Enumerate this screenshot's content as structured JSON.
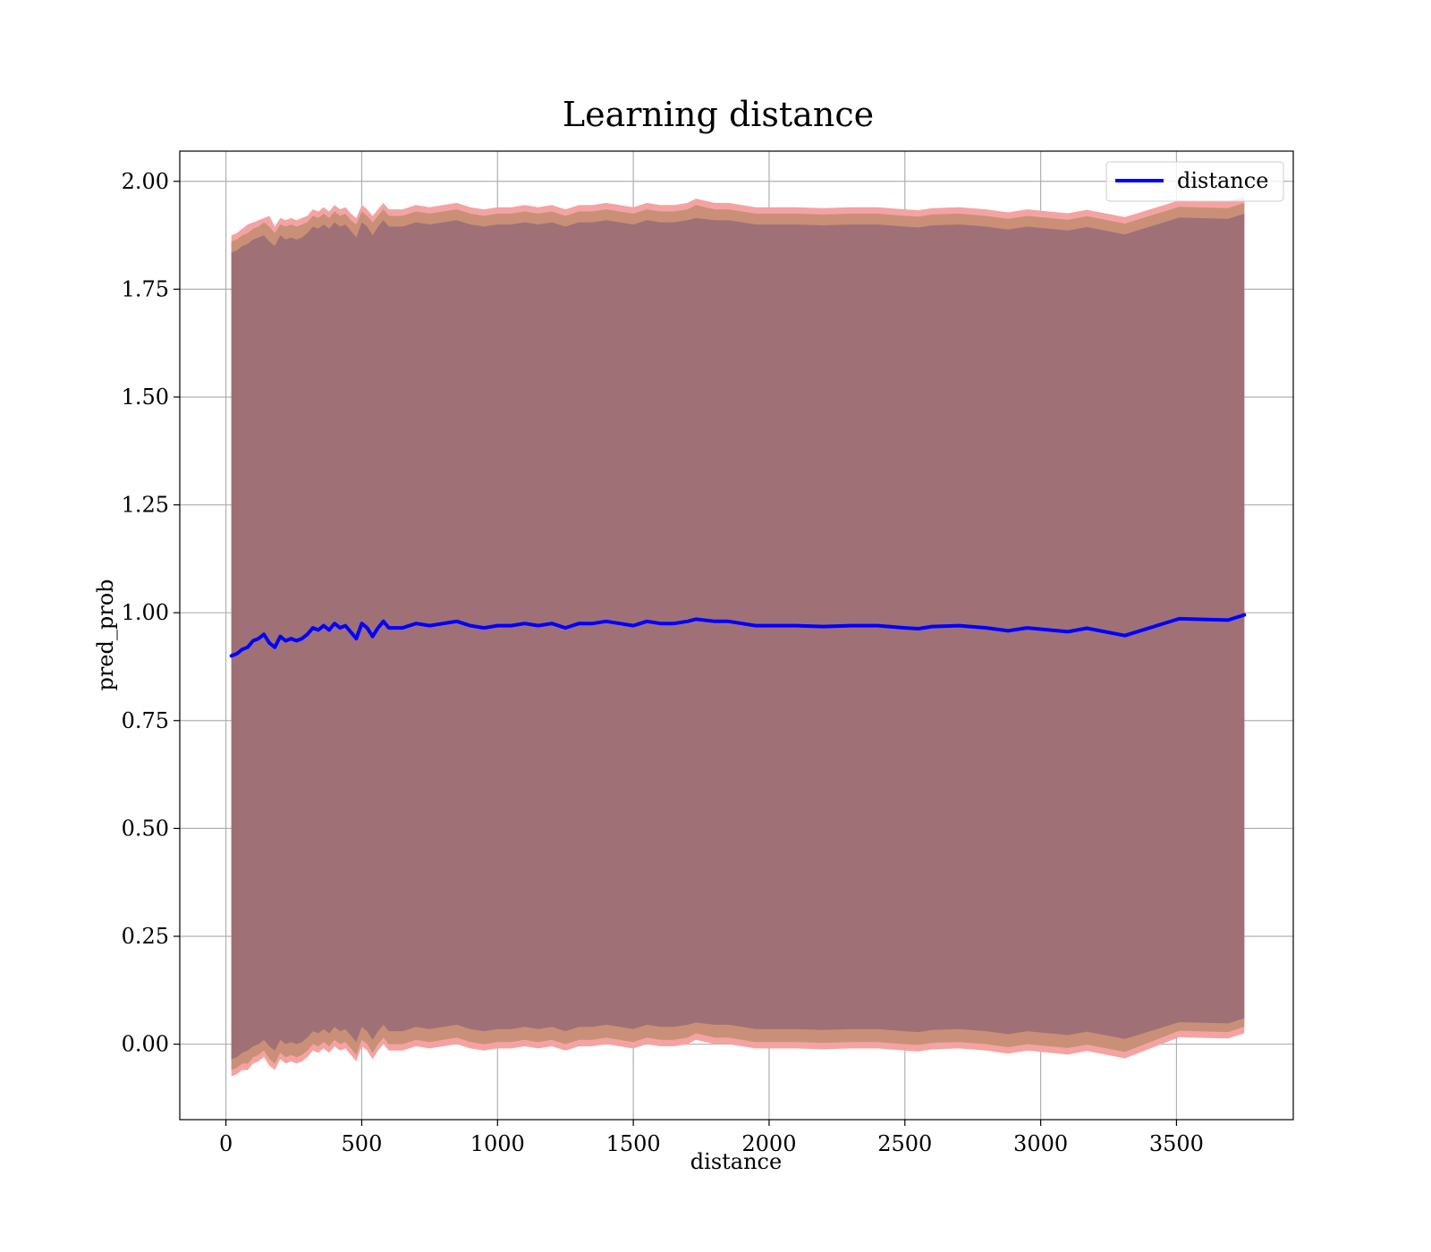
{
  "chart_data": {
    "type": "area",
    "title": "Learning distance",
    "xlabel": "distance",
    "ylabel": "pred_prob",
    "xlim": [
      -170,
      3930
    ],
    "ylim": [
      -0.175,
      2.07
    ],
    "xticks": [
      0,
      500,
      1000,
      1500,
      2000,
      2500,
      3000,
      3500
    ],
    "yticks": [
      0.0,
      0.25,
      0.5,
      0.75,
      1.0,
      1.25,
      1.5,
      1.75,
      2.0
    ],
    "ytick_labels": [
      "0.00",
      "0.25",
      "0.50",
      "0.75",
      "1.00",
      "1.25",
      "1.50",
      "1.75",
      "2.00"
    ],
    "grid": true,
    "legend": {
      "position": "top-right",
      "entries": [
        "distance"
      ]
    },
    "colors": {
      "line": "#0000ff",
      "band_outer": "#f4a3a3",
      "band_middle": "#c99077",
      "band_inner": "#a07077"
    },
    "series": [
      {
        "name": "distance",
        "x": [
          20,
          40,
          60,
          80,
          100,
          120,
          140,
          160,
          180,
          200,
          220,
          240,
          260,
          280,
          300,
          320,
          340,
          360,
          380,
          400,
          420,
          440,
          460,
          480,
          500,
          520,
          540,
          560,
          580,
          600,
          650,
          700,
          750,
          800,
          850,
          900,
          950,
          1000,
          1050,
          1100,
          1150,
          1200,
          1250,
          1300,
          1350,
          1400,
          1450,
          1500,
          1550,
          1600,
          1650,
          1700,
          1730,
          1800,
          1850,
          1900,
          1950,
          2000,
          2100,
          2200,
          2300,
          2400,
          2500,
          2550,
          2600,
          2700,
          2800,
          2880,
          2950,
          3100,
          3170,
          3310,
          3510,
          3690,
          3750
        ],
        "values": [
          0.9,
          0.905,
          0.915,
          0.92,
          0.935,
          0.94,
          0.95,
          0.93,
          0.92,
          0.945,
          0.935,
          0.94,
          0.935,
          0.94,
          0.95,
          0.965,
          0.96,
          0.97,
          0.96,
          0.975,
          0.965,
          0.97,
          0.955,
          0.94,
          0.975,
          0.965,
          0.945,
          0.965,
          0.98,
          0.965,
          0.965,
          0.975,
          0.97,
          0.975,
          0.98,
          0.97,
          0.965,
          0.97,
          0.97,
          0.975,
          0.97,
          0.975,
          0.965,
          0.975,
          0.975,
          0.98,
          0.975,
          0.97,
          0.98,
          0.975,
          0.975,
          0.98,
          0.985,
          0.98,
          0.98,
          0.975,
          0.97,
          0.97,
          0.97,
          0.968,
          0.97,
          0.97,
          0.965,
          0.963,
          0.968,
          0.97,
          0.965,
          0.958,
          0.965,
          0.956,
          0.964,
          0.947,
          0.986,
          0.983,
          0.995
        ],
        "band_outer_upper": [
          1.875,
          1.88,
          1.89,
          1.9,
          1.905,
          1.91,
          1.915,
          1.92,
          1.895,
          1.915,
          1.91,
          1.915,
          1.91,
          1.915,
          1.92,
          1.935,
          1.93,
          1.94,
          1.93,
          1.945,
          1.935,
          1.94,
          1.925,
          1.915,
          1.945,
          1.935,
          1.92,
          1.935,
          1.95,
          1.935,
          1.935,
          1.945,
          1.94,
          1.945,
          1.95,
          1.94,
          1.935,
          1.94,
          1.94,
          1.945,
          1.94,
          1.945,
          1.935,
          1.945,
          1.945,
          1.95,
          1.945,
          1.94,
          1.95,
          1.945,
          1.945,
          1.95,
          1.96,
          1.95,
          1.95,
          1.945,
          1.94,
          1.94,
          1.94,
          1.938,
          1.94,
          1.94,
          1.935,
          1.933,
          1.938,
          1.94,
          1.935,
          1.928,
          1.935,
          1.926,
          1.934,
          1.917,
          1.956,
          1.953,
          1.965
        ],
        "band_outer_lower": [
          -0.075,
          -0.07,
          -0.06,
          -0.06,
          -0.045,
          -0.04,
          -0.03,
          -0.05,
          -0.06,
          -0.035,
          -0.045,
          -0.04,
          -0.045,
          -0.04,
          -0.03,
          -0.015,
          -0.02,
          -0.01,
          -0.02,
          -0.005,
          -0.015,
          -0.01,
          -0.025,
          -0.04,
          -0.005,
          -0.015,
          -0.035,
          -0.015,
          0.0,
          -0.015,
          -0.015,
          -0.005,
          -0.01,
          -0.005,
          0.0,
          -0.01,
          -0.015,
          -0.01,
          -0.01,
          -0.005,
          -0.01,
          -0.005,
          -0.015,
          -0.005,
          -0.005,
          0.0,
          -0.005,
          -0.01,
          0.0,
          -0.005,
          -0.005,
          0.0,
          0.01,
          0.0,
          0.0,
          -0.005,
          -0.01,
          -0.01,
          -0.01,
          -0.012,
          -0.01,
          -0.01,
          -0.015,
          -0.017,
          -0.012,
          -0.01,
          -0.015,
          -0.022,
          -0.015,
          -0.024,
          -0.016,
          -0.033,
          0.016,
          0.013,
          0.025
        ],
        "band_middle_upper": [
          1.86,
          1.865,
          1.875,
          1.88,
          1.89,
          1.895,
          1.905,
          1.895,
          1.88,
          1.9,
          1.895,
          1.9,
          1.895,
          1.9,
          1.905,
          1.92,
          1.915,
          1.925,
          1.915,
          1.93,
          1.92,
          1.925,
          1.91,
          1.9,
          1.93,
          1.92,
          1.905,
          1.92,
          1.935,
          1.92,
          1.92,
          1.93,
          1.925,
          1.93,
          1.935,
          1.925,
          1.92,
          1.925,
          1.925,
          1.93,
          1.925,
          1.93,
          1.92,
          1.93,
          1.93,
          1.935,
          1.93,
          1.925,
          1.935,
          1.93,
          1.93,
          1.935,
          1.945,
          1.935,
          1.935,
          1.93,
          1.925,
          1.925,
          1.925,
          1.923,
          1.925,
          1.925,
          1.92,
          1.918,
          1.923,
          1.925,
          1.92,
          1.913,
          1.92,
          1.911,
          1.919,
          1.902,
          1.941,
          1.938,
          1.95
        ],
        "band_middle_lower": [
          -0.06,
          -0.055,
          -0.045,
          -0.045,
          -0.03,
          -0.025,
          -0.015,
          -0.035,
          -0.045,
          -0.02,
          -0.03,
          -0.025,
          -0.03,
          -0.025,
          -0.015,
          0.0,
          -0.005,
          0.005,
          -0.005,
          0.01,
          0.0,
          0.005,
          -0.01,
          -0.025,
          0.01,
          0.0,
          -0.02,
          0.0,
          0.015,
          0.0,
          0.0,
          0.01,
          0.005,
          0.01,
          0.015,
          0.005,
          0.0,
          0.005,
          0.005,
          0.01,
          0.005,
          0.01,
          0.0,
          0.01,
          0.01,
          0.015,
          0.01,
          0.005,
          0.015,
          0.01,
          0.01,
          0.015,
          0.025,
          0.015,
          0.015,
          0.01,
          0.005,
          0.005,
          0.005,
          0.003,
          0.005,
          0.005,
          0.0,
          -0.002,
          0.003,
          0.005,
          0.0,
          -0.007,
          0.0,
          -0.009,
          -0.001,
          -0.018,
          0.031,
          0.028,
          0.04
        ],
        "band_inner_upper": [
          1.835,
          1.84,
          1.85,
          1.855,
          1.865,
          1.87,
          1.875,
          1.86,
          1.85,
          1.875,
          1.865,
          1.87,
          1.865,
          1.87,
          1.88,
          1.895,
          1.89,
          1.9,
          1.89,
          1.905,
          1.895,
          1.9,
          1.885,
          1.87,
          1.905,
          1.895,
          1.875,
          1.895,
          1.91,
          1.895,
          1.895,
          1.905,
          1.9,
          1.905,
          1.91,
          1.9,
          1.895,
          1.9,
          1.9,
          1.905,
          1.9,
          1.905,
          1.895,
          1.905,
          1.905,
          1.91,
          1.905,
          1.9,
          1.91,
          1.905,
          1.905,
          1.91,
          1.915,
          1.91,
          1.91,
          1.905,
          1.9,
          1.9,
          1.9,
          1.898,
          1.9,
          1.9,
          1.895,
          1.893,
          1.898,
          1.9,
          1.895,
          1.888,
          1.895,
          1.886,
          1.894,
          1.877,
          1.916,
          1.913,
          1.925
        ],
        "band_inner_lower": [
          -0.035,
          -0.03,
          -0.02,
          -0.015,
          -0.005,
          0.0,
          0.01,
          -0.005,
          -0.015,
          0.01,
          0.0,
          0.005,
          0.0,
          0.005,
          0.015,
          0.03,
          0.025,
          0.035,
          0.025,
          0.04,
          0.03,
          0.035,
          0.02,
          0.005,
          0.04,
          0.03,
          0.01,
          0.03,
          0.045,
          0.03,
          0.03,
          0.04,
          0.035,
          0.04,
          0.045,
          0.035,
          0.03,
          0.035,
          0.035,
          0.04,
          0.035,
          0.04,
          0.03,
          0.04,
          0.04,
          0.045,
          0.04,
          0.035,
          0.045,
          0.04,
          0.04,
          0.045,
          0.05,
          0.045,
          0.045,
          0.04,
          0.035,
          0.035,
          0.035,
          0.033,
          0.035,
          0.035,
          0.03,
          0.028,
          0.033,
          0.035,
          0.03,
          0.023,
          0.03,
          0.021,
          0.029,
          0.012,
          0.051,
          0.048,
          0.06
        ]
      }
    ]
  }
}
